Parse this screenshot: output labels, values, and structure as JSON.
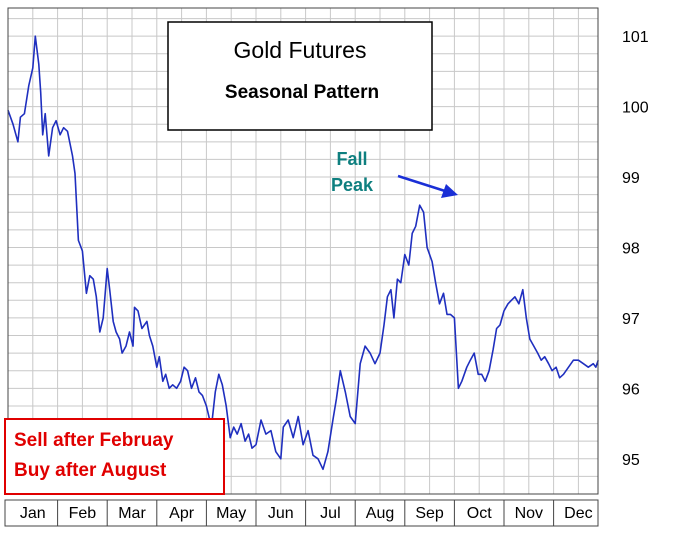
{
  "chart_data": {
    "type": "line",
    "title": "Gold Futures",
    "subtitle": "Seasonal Pattern",
    "xlabel": "",
    "ylabel": "",
    "categories": [
      "Jan",
      "Feb",
      "Mar",
      "Apr",
      "May",
      "Jun",
      "Jul",
      "Aug",
      "Sep",
      "Oct",
      "Nov",
      "Dec"
    ],
    "y_ticks": [
      "95",
      "96",
      "97",
      "98",
      "99",
      "100",
      "101"
    ],
    "ylim": [
      94.5,
      101.4
    ],
    "grid": true,
    "y_axis_side": "right",
    "line_color": "#1f2fbf",
    "annotation": {
      "line1": "Fall",
      "line2": "Peak",
      "color": "#0e7f7f",
      "arrow_color": "#1a2fd6",
      "points_to": {
        "x": 9.25,
        "y": 98.65
      }
    },
    "note_box": {
      "line1": "Sell after Februay",
      "line2": "Buy after August",
      "color": "#e00000"
    },
    "series": [
      {
        "x": [
          0.0,
          0.1,
          0.2,
          0.25,
          0.33,
          0.42,
          0.5,
          0.55,
          0.62,
          0.66,
          0.7,
          0.75,
          0.82,
          0.9,
          0.97,
          1.05,
          1.12,
          1.2,
          1.3,
          1.35,
          1.42,
          1.5,
          1.58,
          1.65,
          1.72,
          1.78,
          1.85,
          1.92,
          2.0,
          2.05,
          2.12,
          2.18,
          2.25,
          2.3,
          2.38,
          2.45,
          2.52,
          2.55,
          2.62,
          2.7,
          2.8,
          2.85,
          2.92,
          3.0,
          3.05,
          3.12,
          3.18,
          3.25,
          3.32,
          3.4,
          3.48,
          3.55,
          3.62,
          3.7,
          3.78,
          3.85,
          3.92,
          4.0,
          4.1,
          4.18,
          4.25,
          4.32,
          4.4,
          4.48,
          4.55,
          4.62,
          4.7,
          4.78,
          4.85,
          4.92,
          5.0,
          5.1,
          5.2,
          5.3,
          5.4,
          5.5,
          5.55,
          5.65,
          5.75,
          5.85,
          5.95,
          6.05,
          6.15,
          6.25,
          6.35,
          6.45,
          6.55,
          6.62,
          6.7,
          6.8,
          6.9,
          7.0,
          7.1,
          7.2,
          7.3,
          7.4,
          7.5,
          7.58,
          7.65,
          7.72,
          7.78,
          7.85,
          7.92,
          8.0,
          8.08,
          8.15,
          8.22,
          8.3,
          8.38,
          8.45,
          8.55,
          8.62,
          8.7,
          8.78,
          8.85,
          8.92,
          9.0,
          9.08,
          9.15,
          9.25,
          9.32,
          9.4,
          9.48,
          9.55,
          9.62,
          9.7,
          9.78,
          9.85,
          9.92,
          10.0,
          10.08,
          10.15,
          10.22,
          10.3,
          10.38,
          10.45,
          10.52,
          10.6,
          10.68,
          10.75,
          10.82,
          10.9,
          10.97,
          11.05,
          11.12,
          11.2,
          11.3,
          11.4,
          11.5,
          11.6,
          11.7,
          11.8,
          11.85,
          11.9
        ],
        "values": [
          99.95,
          99.75,
          99.5,
          99.85,
          99.9,
          100.3,
          100.55,
          101.0,
          100.6,
          100.2,
          99.6,
          99.9,
          99.3,
          99.7,
          99.8,
          99.6,
          99.7,
          99.65,
          99.3,
          99.05,
          98.1,
          97.95,
          97.35,
          97.6,
          97.55,
          97.3,
          96.8,
          97.0,
          97.7,
          97.4,
          96.95,
          96.8,
          96.7,
          96.5,
          96.6,
          96.8,
          96.6,
          97.15,
          97.1,
          96.85,
          96.95,
          96.75,
          96.6,
          96.3,
          96.45,
          96.1,
          96.2,
          96.0,
          96.05,
          96.0,
          96.1,
          96.3,
          96.25,
          96.0,
          96.15,
          95.95,
          95.9,
          95.75,
          95.45,
          95.95,
          96.2,
          96.05,
          95.75,
          95.3,
          95.45,
          95.35,
          95.5,
          95.25,
          95.35,
          95.15,
          95.2,
          95.55,
          95.35,
          95.4,
          95.1,
          95.0,
          95.45,
          95.55,
          95.3,
          95.6,
          95.2,
          95.4,
          95.05,
          95.0,
          94.85,
          95.1,
          95.55,
          95.85,
          96.25,
          95.95,
          95.6,
          95.5,
          96.35,
          96.6,
          96.5,
          96.35,
          96.5,
          96.9,
          97.3,
          97.4,
          97.0,
          97.55,
          97.5,
          97.9,
          97.75,
          98.2,
          98.3,
          98.6,
          98.5,
          98.0,
          97.8,
          97.5,
          97.2,
          97.35,
          97.05,
          97.05,
          97.0,
          96.0,
          96.1,
          96.3,
          96.4,
          96.5,
          96.2,
          96.2,
          96.1,
          96.25,
          96.55,
          96.85,
          96.9,
          97.1,
          97.2,
          97.25,
          97.3,
          97.2,
          97.4,
          97.0,
          96.7,
          96.6,
          96.5,
          96.4,
          96.45,
          96.35,
          96.25,
          96.3,
          96.15,
          96.2,
          96.3,
          96.4,
          96.4,
          96.35,
          96.3,
          96.35,
          96.3,
          96.4
        ]
      }
    ]
  }
}
